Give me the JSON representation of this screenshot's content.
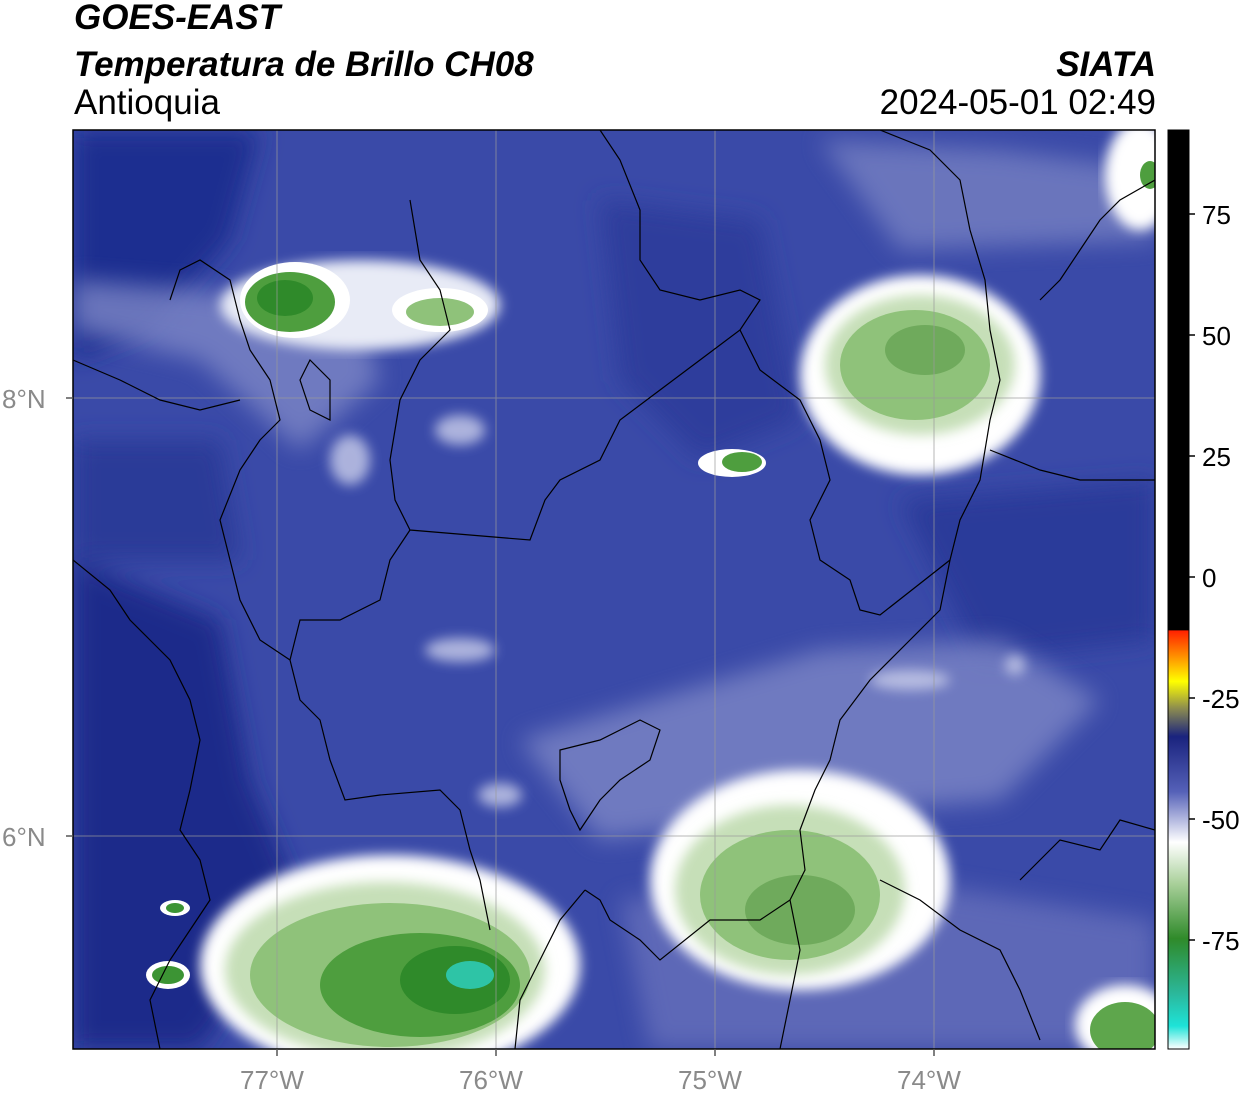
{
  "header": {
    "satellite": "GOES-EAST",
    "product": "Temperatura de Brillo CH08",
    "region": "Antioquia",
    "organization": "SIATA",
    "datetime": "2024-05-01 02:49"
  },
  "map": {
    "lon_range": [
      -77.95,
      -73.0
    ],
    "lat_range": [
      5.05,
      9.25
    ],
    "lon_ticks": [
      {
        "value": -77,
        "label": "77°W"
      },
      {
        "value": -76,
        "label": "76°W"
      },
      {
        "value": -75,
        "label": "75°W"
      },
      {
        "value": -74,
        "label": "74°W"
      }
    ],
    "lat_ticks": [
      {
        "value": 8,
        "label": "8°N"
      },
      {
        "value": 6,
        "label": "6°N"
      }
    ],
    "colors": {
      "background_deep": "#1c2a8a",
      "background_mid": "#3a4aa8",
      "cloud_light": "#d8dcef",
      "cloud_white": "#ffffff",
      "cloud_green_light": "#8fc27a",
      "cloud_green_dark": "#2f8a2a",
      "cloud_cyan": "#2ec4a6"
    }
  },
  "colorbar": {
    "ticks": [
      {
        "value": 75,
        "label": "75"
      },
      {
        "value": 50,
        "label": "50"
      },
      {
        "value": 25,
        "label": "25"
      },
      {
        "value": 0,
        "label": "0"
      },
      {
        "value": -25,
        "label": "-25"
      },
      {
        "value": -50,
        "label": "-50"
      },
      {
        "value": -75,
        "label": "-75"
      }
    ]
  }
}
